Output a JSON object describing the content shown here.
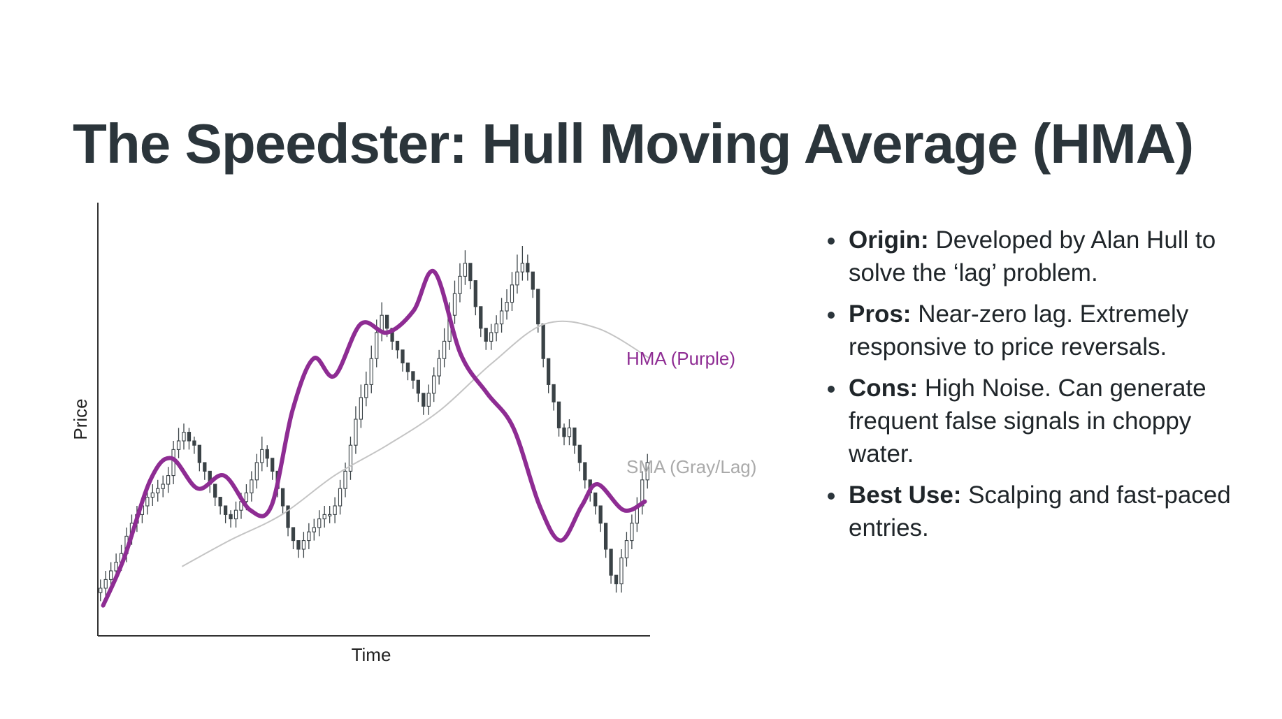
{
  "title": "The Speedster: Hull Moving Average (HMA)",
  "colors": {
    "title": "#2b353b",
    "hma": "#8e2c93",
    "sma": "#c4c4c4",
    "candle_up": "#ffffff",
    "candle_down": "#3a4246",
    "candle_stroke": "#3a4246",
    "axis": "#333333"
  },
  "bullets": [
    {
      "term": "Origin:",
      "text": " Developed by Alan Hull to solve the ‘lag’ problem."
    },
    {
      "term": "Pros:",
      "text": " Near-zero lag. Extremely responsive to price reversals."
    },
    {
      "term": "Cons:",
      "text": " High Noise. Can generate frequent false signals in choppy water."
    },
    {
      "term": "Best Use:",
      "text": " Scalping and fast-paced entries."
    }
  ],
  "chart_data": {
    "type": "line",
    "xlabel": "Time",
    "ylabel": "Price",
    "grid": false,
    "xlim": [
      0,
      105
    ],
    "ylim": [
      0,
      100
    ],
    "x_ticks_shown": false,
    "y_ticks_shown": false,
    "series": [
      {
        "name": "HMA (Purple)",
        "x": [
          1,
          5,
          10,
          14,
          19,
          24,
          29,
          33,
          37,
          41,
          45,
          50,
          55,
          60,
          64,
          69,
          74,
          79,
          84,
          88,
          92,
          95,
          100,
          104
        ],
        "values": [
          7,
          18,
          36,
          41,
          34,
          37,
          29,
          30,
          52,
          64,
          60,
          72,
          70,
          75,
          84,
          65,
          56,
          48,
          30,
          22,
          30,
          35,
          29,
          31
        ],
        "style": "bold line"
      },
      {
        "name": "SMA (Gray/Lag)",
        "x": [
          16,
          25,
          35,
          45,
          55,
          65,
          75,
          85,
          95,
          105
        ],
        "values": [
          16,
          22,
          28,
          37,
          44,
          52,
          63,
          72,
          71,
          64
        ],
        "style": "thin line"
      }
    ],
    "candlesticks": {
      "note": "approximate OHLC series (price units)",
      "open": [
        10,
        11,
        13,
        15,
        17,
        19,
        23,
        26,
        28,
        30,
        32,
        33,
        34,
        35,
        37,
        43,
        45,
        47,
        45,
        44,
        40,
        38,
        35,
        32,
        30,
        28,
        27,
        29,
        31,
        33,
        36,
        40,
        43,
        41,
        38,
        34,
        30,
        25,
        22,
        20,
        22,
        24,
        25,
        27,
        28,
        28,
        30,
        34,
        38,
        44,
        50,
        55,
        58,
        64,
        70,
        74,
        71,
        68,
        66,
        63,
        61,
        59,
        56,
        53,
        56,
        60,
        64,
        68,
        74,
        79,
        83,
        86,
        82,
        76,
        71,
        68,
        70,
        72,
        75,
        77,
        81,
        84,
        86,
        84,
        80,
        72,
        64,
        58,
        54,
        48,
        46,
        48,
        44,
        40,
        36,
        33,
        30,
        26,
        20,
        14,
        12,
        18,
        22,
        26,
        30,
        36
      ],
      "close": [
        11,
        13,
        15,
        17,
        19,
        23,
        26,
        28,
        30,
        32,
        33,
        34,
        35,
        37,
        43,
        45,
        47,
        45,
        44,
        40,
        38,
        35,
        32,
        30,
        28,
        27,
        29,
        31,
        33,
        36,
        40,
        43,
        41,
        38,
        34,
        30,
        25,
        22,
        20,
        22,
        24,
        25,
        27,
        28,
        28,
        30,
        34,
        38,
        44,
        50,
        55,
        58,
        64,
        70,
        74,
        71,
        68,
        66,
        63,
        61,
        59,
        56,
        53,
        56,
        60,
        64,
        68,
        74,
        79,
        83,
        86,
        82,
        76,
        71,
        68,
        70,
        72,
        75,
        77,
        81,
        84,
        86,
        84,
        80,
        72,
        64,
        58,
        54,
        48,
        46,
        48,
        44,
        40,
        36,
        33,
        30,
        26,
        20,
        14,
        12,
        18,
        22,
        26,
        30,
        36,
        40
      ],
      "high": [
        13,
        15,
        17,
        19,
        21,
        25,
        28,
        30,
        32,
        34,
        35,
        36,
        37,
        39,
        45,
        48,
        49,
        48,
        46,
        42,
        40,
        37,
        34,
        32,
        30,
        29,
        31,
        33,
        35,
        38,
        42,
        46,
        44,
        40,
        36,
        32,
        28,
        24,
        22,
        24,
        26,
        27,
        29,
        30,
        30,
        32,
        36,
        40,
        46,
        53,
        58,
        61,
        67,
        73,
        77,
        74,
        71,
        68,
        66,
        63,
        61,
        58,
        56,
        58,
        62,
        66,
        71,
        77,
        82,
        86,
        89,
        85,
        79,
        74,
        70,
        72,
        74,
        78,
        80,
        84,
        88,
        90,
        88,
        84,
        76,
        68,
        61,
        57,
        51,
        49,
        50,
        47,
        43,
        39,
        36,
        33,
        29,
        23,
        17,
        14,
        20,
        24,
        28,
        32,
        38,
        42
      ],
      "low": [
        8,
        9,
        11,
        13,
        15,
        17,
        21,
        24,
        26,
        28,
        30,
        31,
        32,
        33,
        35,
        41,
        43,
        43,
        42,
        38,
        36,
        33,
        30,
        28,
        26,
        25,
        25,
        27,
        29,
        31,
        34,
        38,
        39,
        36,
        32,
        28,
        23,
        20,
        18,
        18,
        20,
        22,
        23,
        25,
        26,
        26,
        28,
        32,
        36,
        42,
        48,
        53,
        56,
        62,
        68,
        69,
        66,
        64,
        61,
        59,
        57,
        54,
        51,
        51,
        54,
        58,
        62,
        66,
        72,
        77,
        81,
        80,
        74,
        69,
        66,
        66,
        68,
        70,
        73,
        75,
        79,
        82,
        82,
        78,
        70,
        62,
        56,
        52,
        46,
        44,
        44,
        42,
        38,
        34,
        31,
        28,
        24,
        18,
        12,
        10,
        10,
        16,
        20,
        24,
        28,
        34
      ]
    },
    "annotations": [
      {
        "text": "HMA (Purple)",
        "anchor": "right of chart, above SMA label"
      },
      {
        "text": "SMA (Gray/Lag)",
        "anchor": "right of chart, below HMA label"
      }
    ]
  }
}
